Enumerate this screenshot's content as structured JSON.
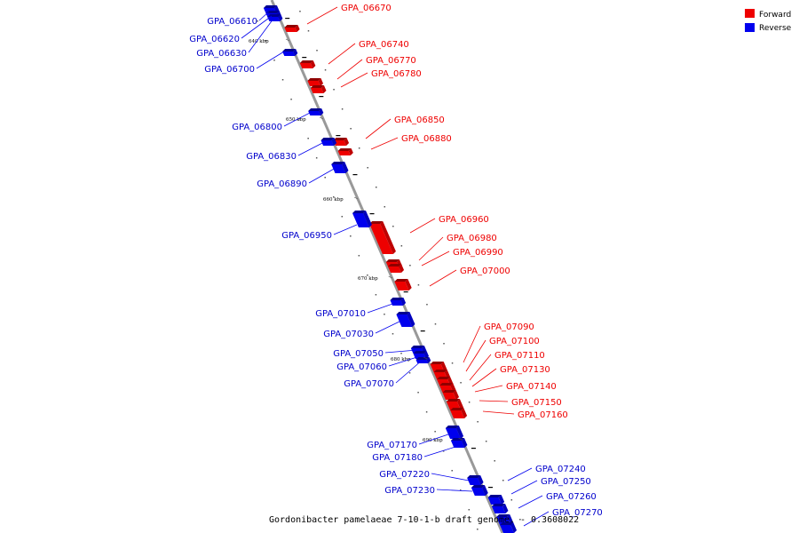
{
  "caption": "Gordonibacter pamelaeae 7-10-1-b draft genome. - 0.3608022",
  "colors": {
    "forward": "#ee0000",
    "reverse": "#0000ee",
    "axis": "#999999"
  },
  "legend": [
    {
      "label": "Forward",
      "color": "#ee0000"
    },
    {
      "label": "Reverse",
      "color": "#0000ee"
    }
  ],
  "ticks": [
    "640 kbp",
    "650 kbp",
    "660 kbp",
    "670 kbp",
    "680 kbp",
    "690 kbp"
  ],
  "forward_genes": [
    "GPA_06670",
    "GPA_06740",
    "GPA_06770",
    "GPA_06780",
    "GPA_06850",
    "GPA_06880",
    "GPA_06960",
    "GPA_06980",
    "GPA_06990",
    "GPA_07000",
    "GPA_07090",
    "GPA_07100",
    "GPA_07110",
    "GPA_07130",
    "GPA_07140",
    "GPA_07150",
    "GPA_07160"
  ],
  "reverse_genes": [
    "GPA_06610",
    "GPA_06620",
    "GPA_06630",
    "GPA_06700",
    "GPA_06800",
    "GPA_06830",
    "GPA_06890",
    "GPA_06950",
    "GPA_07010",
    "GPA_07030",
    "GPA_07050",
    "GPA_07060",
    "GPA_07070",
    "GPA_07170",
    "GPA_07180",
    "GPA_07220",
    "GPA_07230",
    "GPA_07240",
    "GPA_07250",
    "GPA_07260",
    "GPA_07270"
  ]
}
